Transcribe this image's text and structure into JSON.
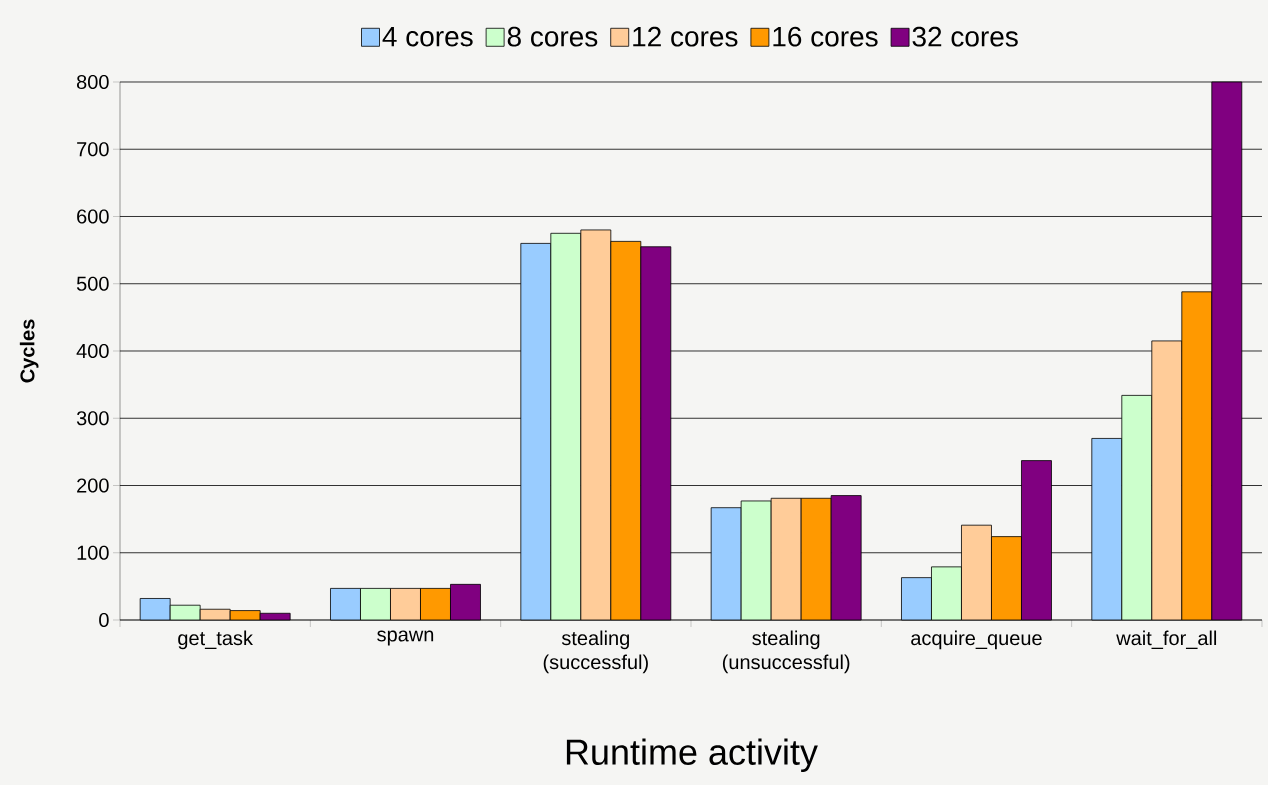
{
  "chart_data": {
    "type": "bar",
    "categories": [
      "get_task",
      "spawn",
      "stealing (successful)",
      "stealing (unsuccessful)",
      "acquire_queue",
      "wait_for_all"
    ],
    "series": [
      {
        "name": "4 cores",
        "color": "#99ccff",
        "values": [
          32,
          47,
          560,
          167,
          63,
          270
        ]
      },
      {
        "name": "8 cores",
        "color": "#ccffcc",
        "values": [
          22,
          47,
          575,
          177,
          79,
          334
        ]
      },
      {
        "name": "12 cores",
        "color": "#ffcc99",
        "values": [
          16,
          47,
          580,
          181,
          141,
          415
        ]
      },
      {
        "name": "16 cores",
        "color": "#ff9900",
        "values": [
          14,
          47,
          563,
          181,
          124,
          488
        ]
      },
      {
        "name": "32 cores",
        "color": "#800080",
        "values": [
          10,
          53,
          555,
          185,
          237,
          800
        ]
      }
    ],
    "xlabel": "Runtime activity",
    "ylabel": "Cycles",
    "ylim": [
      0,
      800
    ],
    "yticks": [
      0,
      100,
      200,
      300,
      400,
      500,
      600,
      700,
      800
    ],
    "grid": "y",
    "legend": "top"
  }
}
